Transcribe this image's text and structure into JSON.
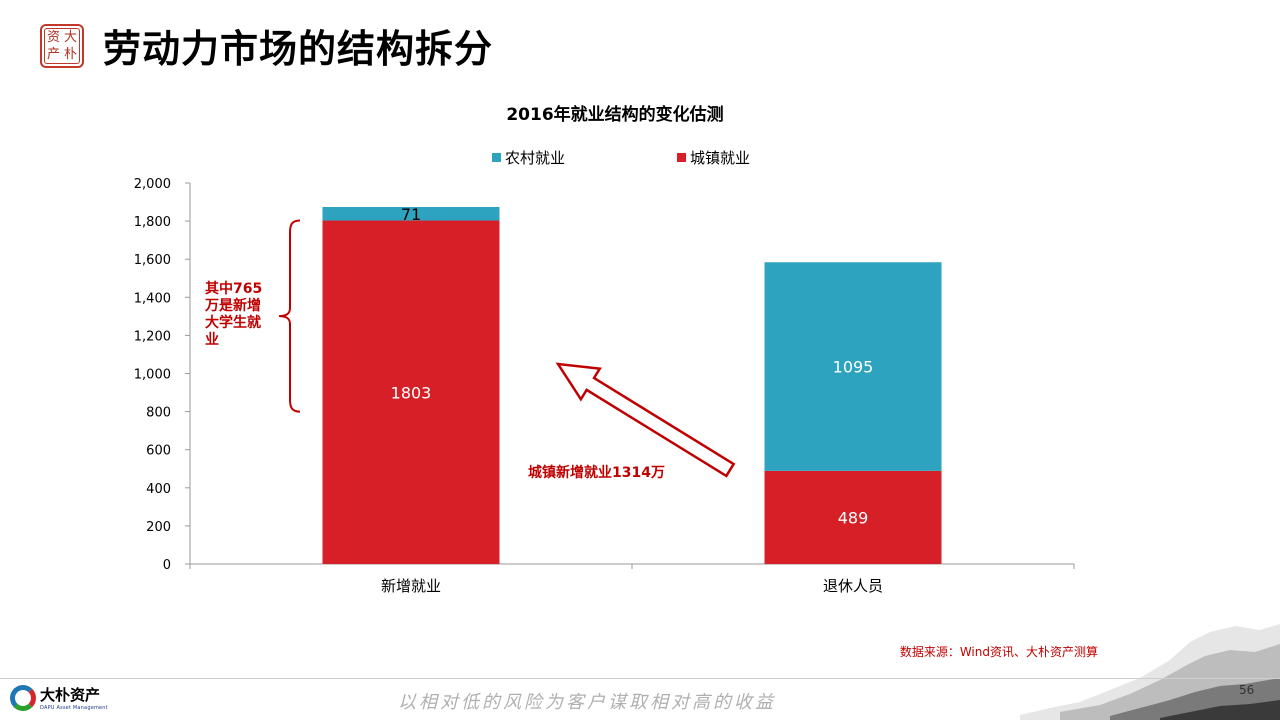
{
  "header": {
    "title": "劳动力市场的结构拆分",
    "seal_chars": [
      "大",
      "朴",
      "资",
      "产"
    ]
  },
  "chart_data": {
    "type": "bar",
    "stacked": true,
    "title": "2016年就业结构的变化估测",
    "categories": [
      "新增就业",
      "退休人员"
    ],
    "series": [
      {
        "name": "城镇就业",
        "values": [
          1803,
          489
        ],
        "color": "#d71f27"
      },
      {
        "name": "农村就业",
        "values": [
          71,
          1095
        ],
        "color": "#2ea3bf"
      }
    ],
    "legend_order": [
      "农村就业",
      "城镇就业"
    ],
    "legend_position": "top",
    "ylim": [
      0,
      2000
    ],
    "yticks": [
      "0",
      "200",
      "400",
      "600",
      "800",
      "1,000",
      "1,200",
      "1,400",
      "1,600",
      "1,800",
      "2,000"
    ],
    "grid": false
  },
  "annotations": {
    "brace_note": "其中765万是新增大学生就业",
    "brace_note_lines": [
      "其中765",
      "万是新增",
      "大学生就",
      "业"
    ],
    "arrow_note": "城镇新增就业1314万",
    "source": "数据来源：Wind资讯、大朴资产测算"
  },
  "footer": {
    "logo_cn": "大朴资产",
    "logo_en": "DAPU Asset Management",
    "slogan": "以相对低的风险为客户谋取相对高的收益",
    "page_number": "56"
  }
}
